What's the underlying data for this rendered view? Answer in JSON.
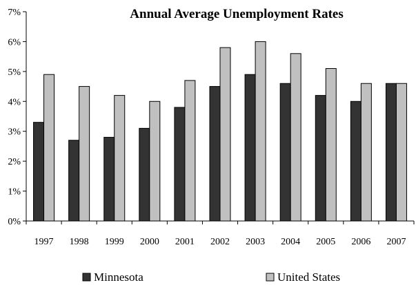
{
  "chart_data": {
    "type": "bar",
    "title": "Annual Average Unemployment Rates",
    "xlabel": "",
    "ylabel": "",
    "categories": [
      "1997",
      "1998",
      "1999",
      "2000",
      "2001",
      "2002",
      "2003",
      "2004",
      "2005",
      "2006",
      "2007"
    ],
    "series": [
      {
        "name": "Minnesota",
        "values": [
          3.3,
          2.7,
          2.8,
          3.1,
          3.8,
          4.5,
          4.9,
          4.6,
          4.2,
          4.0,
          4.6
        ],
        "color": "#333333"
      },
      {
        "name": "United States",
        "values": [
          4.9,
          4.5,
          4.2,
          4.0,
          4.7,
          5.8,
          6.0,
          5.6,
          5.1,
          4.6,
          4.6
        ],
        "color": "#c0c0c0"
      }
    ],
    "ylim": [
      0,
      7
    ],
    "yticks": [
      0,
      1,
      2,
      3,
      4,
      5,
      6,
      7
    ],
    "ytick_labels": [
      "0%",
      "1%",
      "2%",
      "3%",
      "4%",
      "5%",
      "6%",
      "7%"
    ],
    "grid": false,
    "legend_position": "bottom"
  }
}
